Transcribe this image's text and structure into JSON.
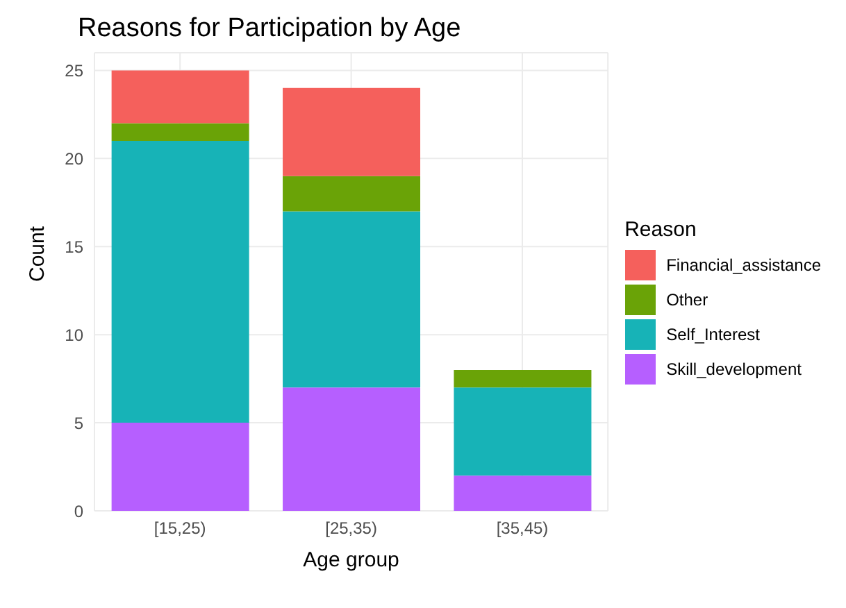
{
  "chart_data": {
    "type": "bar",
    "title": "Reasons for Participation by Age",
    "xlabel": "Age group",
    "ylabel": "Count",
    "legend_title": "Reason",
    "stacked": true,
    "categories": [
      "[15,25)",
      "[25,35)",
      "[35,45)"
    ],
    "series": [
      {
        "name": "Skill_development",
        "color": "#b65fff",
        "values": [
          5,
          7,
          2
        ]
      },
      {
        "name": "Self_Interest",
        "color": "#17b3b7",
        "values": [
          16,
          10,
          5
        ]
      },
      {
        "name": "Other",
        "color": "#6aa307",
        "values": [
          1,
          2,
          1
        ]
      },
      {
        "name": "Financial_assistance",
        "color": "#f5605c",
        "values": [
          3,
          5,
          0
        ]
      }
    ],
    "ylim": [
      0,
      26
    ],
    "yticks": [
      0,
      5,
      10,
      15,
      20,
      25
    ],
    "grid": true,
    "legend": "right"
  }
}
